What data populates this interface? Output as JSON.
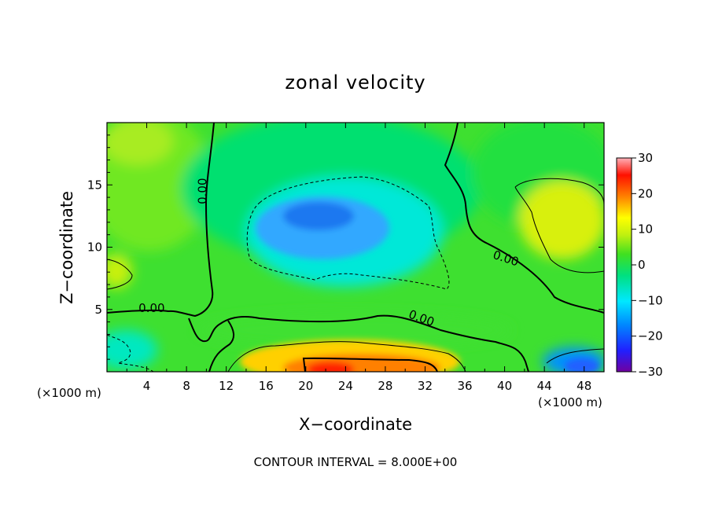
{
  "chart_data": {
    "type": "heatmap",
    "title": "zonal velocity",
    "xlabel": "X−coordinate",
    "ylabel": "Z−coordinate",
    "x_unit_label": "(×1000 m)",
    "z_unit_label": "(×1000 m)",
    "footer": "CONTOUR INTERVAL = 8.000E+00",
    "xlim": [
      0,
      50
    ],
    "ylim": [
      0,
      20
    ],
    "x_ticks": [
      4,
      8,
      12,
      16,
      20,
      24,
      28,
      32,
      36,
      40,
      44,
      48
    ],
    "y_ticks": [
      5,
      10,
      15
    ],
    "colorbar": {
      "min": -30,
      "max": 30,
      "ticks": [
        30,
        20,
        10,
        0,
        -10,
        -20,
        -30
      ]
    },
    "contour_labels": [
      {
        "text": "0.00",
        "x": 10,
        "z": 14.5
      },
      {
        "text": "0.00",
        "x": 4.5,
        "z": 4.8
      },
      {
        "text": "0.00",
        "x": 31.5,
        "z": 4.0
      },
      {
        "text": "0.00",
        "x": 40,
        "z": 8.8
      }
    ],
    "features": [
      {
        "x": 24,
        "z": 12,
        "value": -14
      },
      {
        "x": 23.5,
        "z": 1.0,
        "value": 25
      },
      {
        "x": 29,
        "z": 1.2,
        "value": 18
      },
      {
        "x": 46,
        "z": 13,
        "value": 11
      },
      {
        "x": 47,
        "z": 0.8,
        "value": -16
      },
      {
        "x": 1,
        "z": 2,
        "value": -6
      },
      {
        "x": 1,
        "z": 8.5,
        "value": 8
      }
    ]
  }
}
